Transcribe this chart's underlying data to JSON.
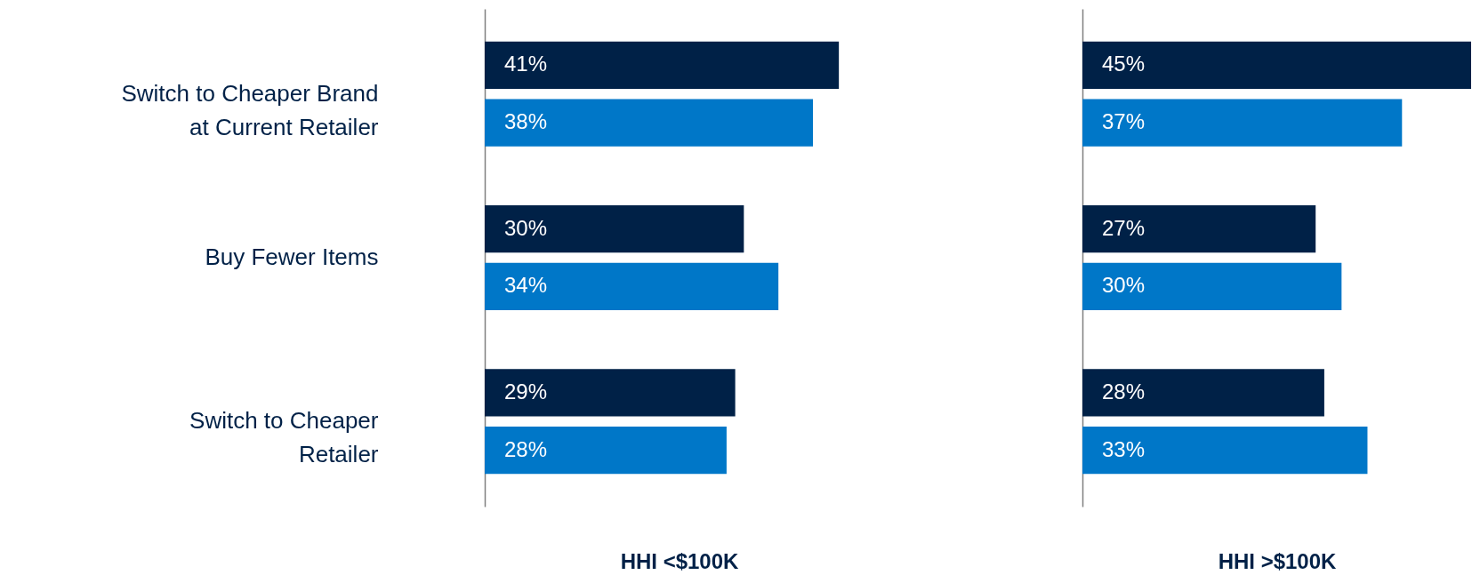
{
  "chart_data": [
    {
      "type": "bar",
      "orientation": "horizontal",
      "xlabel": "HHI <$100K",
      "tick_labels": "y",
      "categories": [
        "Switch to Cheaper Brand at Current Retailer",
        "Buy Fewer Items",
        "Switch to Cheaper Retailer"
      ],
      "series": [
        {
          "color": "#002147",
          "values": [
            41,
            30,
            29
          ],
          "value_labels": [
            "41%",
            "30%",
            "29%"
          ]
        },
        {
          "color": "#0077c8",
          "values": [
            38,
            34,
            28
          ],
          "value_labels": [
            "38%",
            "34%",
            "28%"
          ]
        }
      ]
    },
    {
      "type": "bar",
      "orientation": "horizontal",
      "xlabel": "HHI >$100K",
      "tick_labels": false,
      "categories": [
        null,
        null,
        null
      ],
      "series": [
        {
          "color": "#002147",
          "values": [
            45,
            27,
            28
          ],
          "value_labels": [
            "45%",
            "27%",
            "28%"
          ]
        },
        {
          "color": "#0077c8",
          "values": [
            37,
            30,
            33
          ],
          "value_labels": [
            "37%",
            "30%",
            "33%"
          ]
        }
      ]
    }
  ]
}
